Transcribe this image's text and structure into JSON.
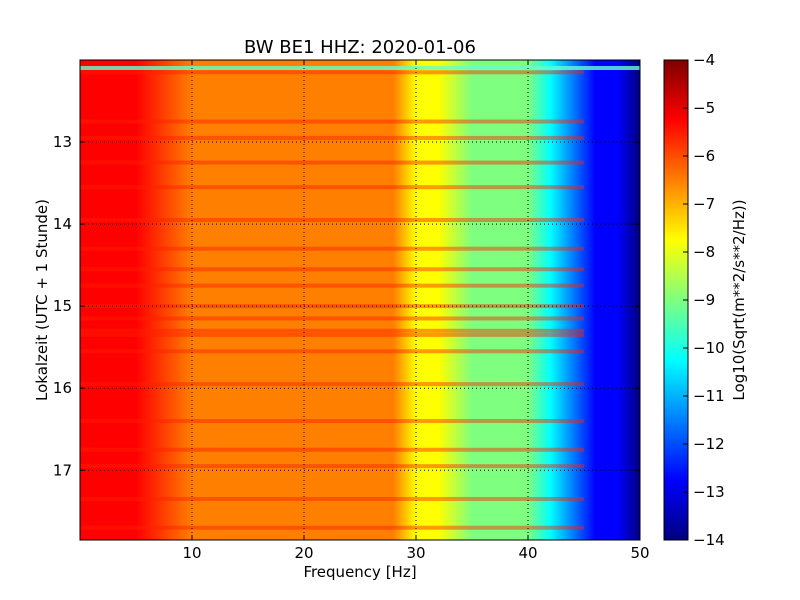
{
  "chart_data": {
    "type": "heatmap",
    "title": "BW BE1 HHZ: 2020-01-06",
    "xlabel": "Frequency [Hz]",
    "ylabel": "Lokalzeit (UTC + 1 Stunde)",
    "xlim": [
      0,
      50
    ],
    "ylim": [
      12.0,
      17.85
    ],
    "y_inverted": true,
    "x_ticks": [
      10,
      20,
      30,
      40,
      50
    ],
    "y_ticks": [
      13,
      14,
      15,
      16,
      17
    ],
    "grid": true,
    "colormap": "jet",
    "colorbar": {
      "label": "Log10(Sqrt(m**2/s**2/Hz))",
      "range": [
        -14,
        -4
      ],
      "ticks": [
        -4,
        -5,
        -6,
        -7,
        -8,
        -9,
        -10,
        -11,
        -12,
        -13,
        -14
      ]
    },
    "spectrum_profile": {
      "frequency_hz": [
        0,
        1,
        2,
        5,
        10,
        15,
        20,
        25,
        28,
        30,
        32,
        35,
        38,
        40,
        42,
        44,
        46,
        48,
        50
      ],
      "log_amplitude": [
        -4.9,
        -5.1,
        -5.3,
        -5.7,
        -5.9,
        -6.1,
        -6.3,
        -6.6,
        -6.9,
        -7.3,
        -7.9,
        -8.4,
        -8.9,
        -9.5,
        -10.5,
        -11.8,
        -12.7,
        -13.2,
        -13.5
      ]
    },
    "bright_bands_hours": [
      12.15,
      12.75,
      12.95,
      13.25,
      13.55,
      13.95,
      14.3,
      14.55,
      14.75,
      15.0,
      15.15,
      15.3,
      15.35,
      15.55,
      15.95,
      16.4,
      16.75,
      16.95,
      17.35,
      17.7
    ]
  },
  "colors": {
    "jet_stops": [
      "#00007f",
      "#0000ff",
      "#007fff",
      "#00ffff",
      "#7fff7f",
      "#ffff00",
      "#ff7f00",
      "#ff0000",
      "#7f0000"
    ],
    "frame": "#000000",
    "background": "#ffffff"
  }
}
